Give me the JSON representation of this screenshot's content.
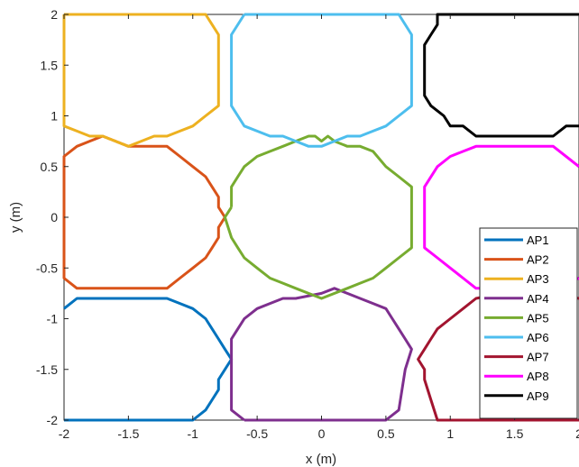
{
  "chart_data": {
    "type": "line",
    "title": "",
    "xlabel": "x (m)",
    "ylabel": "y (m)",
    "xlim": [
      -2,
      2
    ],
    "ylim": [
      -2,
      2
    ],
    "xticks": [
      -2,
      -1.5,
      -1,
      -0.5,
      0,
      0.5,
      1,
      1.5,
      2
    ],
    "yticks": [
      -2,
      -1.5,
      -1,
      -0.5,
      0,
      0.5,
      1,
      1.5,
      2
    ],
    "xtick_labels": [
      "-2",
      "-1.5",
      "-1",
      "-0.5",
      "0",
      "0.5",
      "1",
      "1.5",
      "2"
    ],
    "ytick_labels": [
      "-2",
      "-1.5",
      "-1",
      "-0.5",
      "0",
      "0.5",
      "1",
      "1.5",
      "2"
    ],
    "grid": false,
    "legend_position": "bottom-right",
    "series": [
      {
        "name": "AP1",
        "color": "#0072BD",
        "x": [
          -2,
          -1.9,
          -1.8,
          -1.7,
          -1.6,
          -1.5,
          -1.3,
          -1.2,
          -1.1,
          -1.0,
          -0.9,
          -0.85,
          -0.8,
          -0.75,
          -0.7,
          -0.75,
          -0.8,
          -0.8,
          -0.85,
          -0.9,
          -1.0,
          -2.0
        ],
        "y": [
          -0.9,
          -0.8,
          -0.8,
          -0.8,
          -0.8,
          -0.8,
          -0.8,
          -0.8,
          -0.85,
          -0.9,
          -1.0,
          -1.1,
          -1.2,
          -1.3,
          -1.4,
          -1.5,
          -1.6,
          -1.7,
          -1.8,
          -1.9,
          -2.0,
          -2.0
        ]
      },
      {
        "name": "AP2",
        "color": "#D95319",
        "x": [
          -2.0,
          -2.0,
          -1.9,
          -1.8,
          -1.7,
          -1.6,
          -1.5,
          -1.4,
          -1.2,
          -1.1,
          -1.0,
          -0.9,
          -0.85,
          -0.8,
          -0.8,
          -0.75,
          -0.8,
          -0.8,
          -0.85,
          -0.9,
          -1.0,
          -1.1,
          -1.2,
          -1.8,
          -1.9,
          -2.0,
          -2.0
        ],
        "y": [
          0.0,
          0.6,
          0.7,
          0.75,
          0.8,
          0.75,
          0.7,
          0.7,
          0.7,
          0.6,
          0.5,
          0.4,
          0.3,
          0.2,
          0.1,
          0.0,
          -0.1,
          -0.2,
          -0.3,
          -0.4,
          -0.5,
          -0.6,
          -0.7,
          -0.7,
          -0.7,
          -0.6,
          0.0
        ]
      },
      {
        "name": "AP3",
        "color": "#EDB120",
        "x": [
          -2.0,
          -2.0,
          -1.9,
          -1.8,
          -1.7,
          -1.5,
          -1.4,
          -1.3,
          -1.2,
          -1.1,
          -1.0,
          -0.9,
          -0.8,
          -0.8,
          -0.85,
          -0.9,
          -2.0
        ],
        "y": [
          2.0,
          0.9,
          0.85,
          0.8,
          0.8,
          0.7,
          0.75,
          0.8,
          0.8,
          0.85,
          0.9,
          1.0,
          1.1,
          1.8,
          1.9,
          2.0,
          2.0
        ]
      },
      {
        "name": "AP4",
        "color": "#7E2F8E",
        "x": [
          -0.6,
          -0.7,
          -0.7,
          -0.65,
          -0.6,
          -0.5,
          -0.4,
          -0.3,
          -0.2,
          0.0,
          0.1,
          0.2,
          0.3,
          0.4,
          0.5,
          0.55,
          0.6,
          0.65,
          0.7,
          0.65,
          0.6,
          0.5,
          -0.6
        ],
        "y": [
          -2.0,
          -1.9,
          -1.2,
          -1.1,
          -1.0,
          -0.9,
          -0.85,
          -0.8,
          -0.8,
          -0.75,
          -0.7,
          -0.75,
          -0.8,
          -0.85,
          -0.9,
          -1.0,
          -1.1,
          -1.2,
          -1.3,
          -1.5,
          -1.9,
          -2.0,
          -2.0
        ]
      },
      {
        "name": "AP5",
        "color": "#77AC30",
        "x": [
          -0.7,
          -0.7,
          -0.65,
          -0.6,
          -0.5,
          -0.4,
          -0.3,
          -0.2,
          -0.1,
          -0.05,
          0.0,
          0.05,
          0.1,
          0.2,
          0.3,
          0.4,
          0.5,
          0.6,
          0.7,
          0.7,
          0.6,
          0.5,
          0.4,
          0.3,
          0.2,
          0.0,
          -0.2,
          -0.3,
          -0.4,
          -0.5,
          -0.6,
          -0.65,
          -0.7,
          -0.75,
          -0.7,
          -0.7
        ],
        "y": [
          0.1,
          0.3,
          0.4,
          0.5,
          0.6,
          0.65,
          0.7,
          0.75,
          0.8,
          0.8,
          0.75,
          0.8,
          0.75,
          0.7,
          0.7,
          0.65,
          0.5,
          0.4,
          0.3,
          -0.3,
          -0.4,
          -0.5,
          -0.6,
          -0.65,
          -0.7,
          -0.8,
          -0.7,
          -0.65,
          -0.6,
          -0.5,
          -0.4,
          -0.3,
          -0.2,
          0.0,
          0.1,
          0.1
        ]
      },
      {
        "name": "AP6",
        "color": "#4DBEEE",
        "x": [
          -0.6,
          -0.7,
          -0.7,
          -0.65,
          -0.6,
          -0.5,
          -0.4,
          -0.3,
          -0.2,
          -0.1,
          0.0,
          0.1,
          0.2,
          0.3,
          0.4,
          0.5,
          0.6,
          0.7,
          0.7,
          0.6,
          -0.6
        ],
        "y": [
          2.0,
          1.8,
          1.1,
          1.0,
          0.9,
          0.85,
          0.8,
          0.8,
          0.75,
          0.7,
          0.7,
          0.75,
          0.8,
          0.8,
          0.85,
          0.9,
          1.0,
          1.1,
          1.8,
          2.0,
          2.0
        ]
      },
      {
        "name": "AP7",
        "color": "#A2142F",
        "x": [
          2.0,
          1.8,
          1.6,
          1.4,
          1.2,
          1.1,
          1.0,
          0.9,
          0.85,
          0.8,
          0.75,
          0.8,
          0.8,
          0.85,
          0.9,
          2.0
        ],
        "y": [
          -0.8,
          -0.75,
          -0.7,
          -0.75,
          -0.8,
          -0.9,
          -1.0,
          -1.1,
          -1.2,
          -1.3,
          -1.4,
          -1.5,
          -1.6,
          -1.8,
          -2.0,
          -2.0
        ]
      },
      {
        "name": "AP8",
        "color": "#FF00FF",
        "x": [
          2.0,
          1.8,
          1.2,
          1.1,
          1.0,
          0.9,
          0.8,
          0.8,
          0.9,
          1.0,
          1.1,
          1.2,
          1.8,
          2.0
        ],
        "y": [
          0.5,
          0.7,
          0.7,
          0.65,
          0.6,
          0.5,
          0.3,
          -0.3,
          -0.4,
          -0.5,
          -0.6,
          -0.7,
          -0.7,
          -0.6
        ]
      },
      {
        "name": "AP9",
        "color": "#000000",
        "x": [
          2.0,
          0.9,
          0.9,
          0.85,
          0.8,
          0.8,
          0.85,
          0.9,
          0.95,
          1.0,
          1.1,
          1.2,
          1.8,
          1.9,
          2.0
        ],
        "y": [
          2.0,
          2.0,
          1.9,
          1.8,
          1.7,
          1.2,
          1.1,
          1.05,
          1.0,
          0.9,
          0.9,
          0.8,
          0.8,
          0.9,
          0.9
        ]
      }
    ]
  }
}
